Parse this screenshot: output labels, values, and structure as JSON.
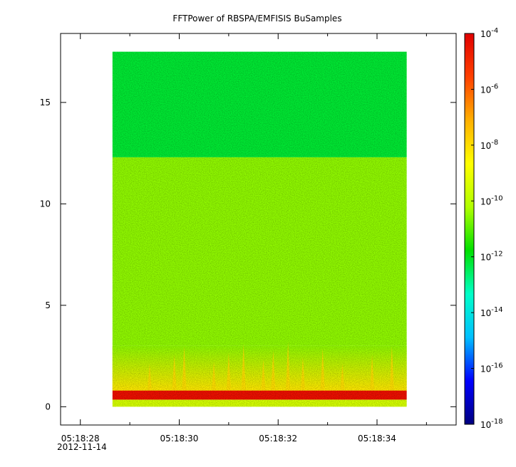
{
  "chart_data": {
    "type": "heatmap",
    "title": "FFTPower of RBSPA/EMFISIS  BuSamples",
    "xlabel": "",
    "ylabel": "",
    "x_axis": {
      "ticks": [
        {
          "value": "05:18:28",
          "label": "05:18:28"
        },
        {
          "value": "05:18:30",
          "label": "05:18:30"
        },
        {
          "value": "05:18:32",
          "label": "05:18:32"
        },
        {
          "value": "05:18:34",
          "label": "05:18:34"
        }
      ],
      "minor_ticks": [
        "05:18:29",
        "05:18:31",
        "05:18:33",
        "05:18:35"
      ],
      "date_label": "2012-11-14",
      "range": [
        "05:18:27.6",
        "05:18:35.6"
      ]
    },
    "y_axis": {
      "ticks": [
        0,
        5,
        10,
        15
      ],
      "range": [
        -0.9,
        18.4
      ]
    },
    "colorbar": {
      "scale": "log",
      "range": [
        1e-18,
        0.0001
      ],
      "ticks": [
        {
          "base": "10",
          "exp": "-4"
        },
        {
          "base": "10",
          "exp": "-6"
        },
        {
          "base": "10",
          "exp": "-8"
        },
        {
          "base": "10",
          "exp": "-10"
        },
        {
          "base": "10",
          "exp": "-12"
        },
        {
          "base": "10",
          "exp": "-14"
        },
        {
          "base": "10",
          "exp": "-16"
        },
        {
          "base": "10",
          "exp": "-18"
        }
      ],
      "colors": [
        "#00007f",
        "#0000ff",
        "#00bfff",
        "#00ffc8",
        "#00e000",
        "#b0ff00",
        "#ffff00",
        "#ffb000",
        "#ff4000",
        "#e00000"
      ]
    },
    "data": {
      "x_start": "05:18:28.65",
      "x_end": "05:18:34.60",
      "y_start": 0.0,
      "y_end": 17.5,
      "bands": [
        {
          "y_from": 0.0,
          "y_to": 0.35,
          "log10_power": -9.5
        },
        {
          "y_from": 0.35,
          "y_to": 0.8,
          "log10_power": -4.6
        },
        {
          "y_from": 0.8,
          "y_to": 3.0,
          "log10_power": -9.2
        },
        {
          "y_from": 3.0,
          "y_to": 12.3,
          "log10_power": -10.5
        },
        {
          "y_from": 12.3,
          "y_to": 17.5,
          "log10_power": -12.2
        }
      ],
      "bursts_time": [
        "05:18:29.4",
        "05:18:29.9",
        "05:18:30.1",
        "05:18:30.7",
        "05:18:31.0",
        "05:18:31.3",
        "05:18:31.7",
        "05:18:31.9",
        "05:18:32.2",
        "05:18:32.5",
        "05:18:32.9",
        "05:18:33.3",
        "05:18:33.9",
        "05:18:34.3"
      ]
    }
  }
}
